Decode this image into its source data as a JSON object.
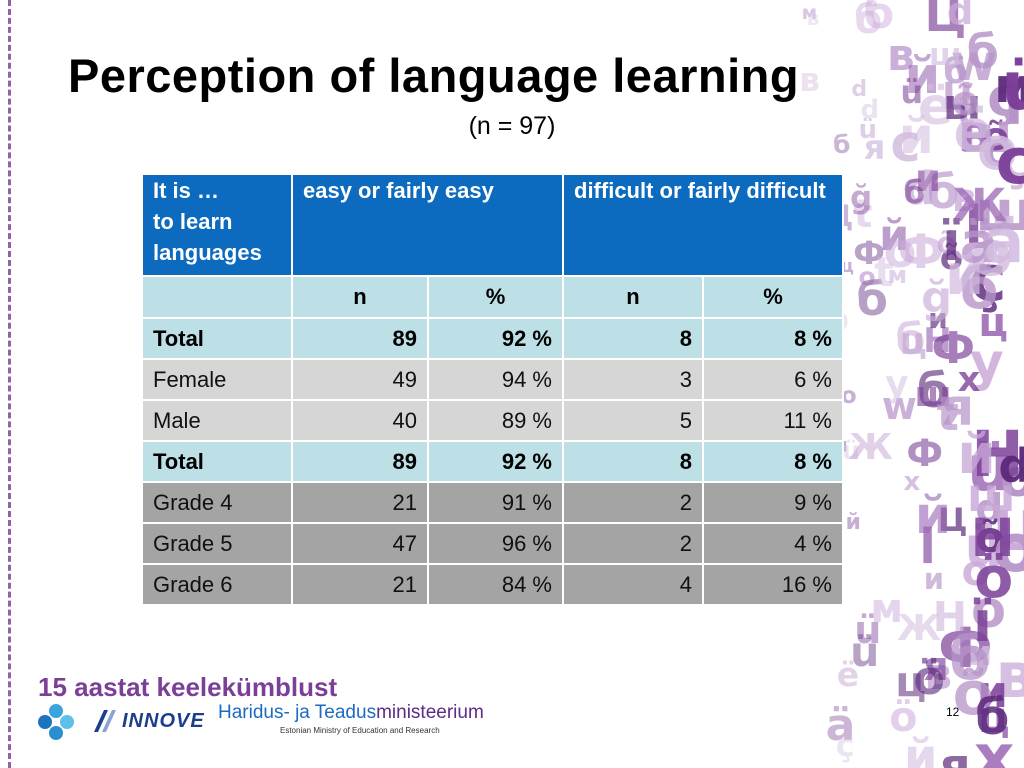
{
  "slide": {
    "title": "Perception of language learning",
    "subtitle": "(n = 97)",
    "page_number": "12"
  },
  "table": {
    "header": {
      "col1": "It is …\nto learn\nlanguages",
      "col2": "easy or fairly easy",
      "col3": "difficult or fairly difficult"
    },
    "subheader": [
      "",
      "n",
      "%",
      "n",
      "%"
    ],
    "rows": [
      {
        "label": "Total",
        "easy_n": "89",
        "easy_pct": "92 %",
        "diff_n": "8",
        "diff_pct": "8 %"
      },
      {
        "label": "Female",
        "easy_n": "49",
        "easy_pct": "94 %",
        "diff_n": "3",
        "diff_pct": "6 %"
      },
      {
        "label": "Male",
        "easy_n": "40",
        "easy_pct": "89 %",
        "diff_n": "5",
        "diff_pct": "11 %"
      },
      {
        "label": "Total",
        "easy_n": "89",
        "easy_pct": "92 %",
        "diff_n": "8",
        "diff_pct": "8 %"
      },
      {
        "label": "Grade 4",
        "easy_n": "21",
        "easy_pct": "91 %",
        "diff_n": "2",
        "diff_pct": "9 %"
      },
      {
        "label": "Grade 5",
        "easy_n": "47",
        "easy_pct": "96 %",
        "diff_n": "2",
        "diff_pct": "4 %"
      },
      {
        "label": "Grade 6",
        "easy_n": "21",
        "easy_pct": "84 %",
        "diff_n": "4",
        "diff_pct": "16 %"
      }
    ]
  },
  "footer": {
    "program_title": "15 aastat keelekümblust",
    "innove_logo": "INNOVE",
    "ministry_name_part1": "Haridus- ja Teadus",
    "ministry_name_part2": "ministeerium",
    "ministry_english": "Estonian Ministry of Education and Research"
  },
  "colors": {
    "header_blue": "#0d6bbf",
    "light_cyan": "#bde0e6",
    "light_gray": "#d6d6d6",
    "dark_gray": "#a4a4a4",
    "purple": "#7b3f98"
  },
  "icons": [
    "flower-logo-icon",
    "innove-logo-icon"
  ]
}
